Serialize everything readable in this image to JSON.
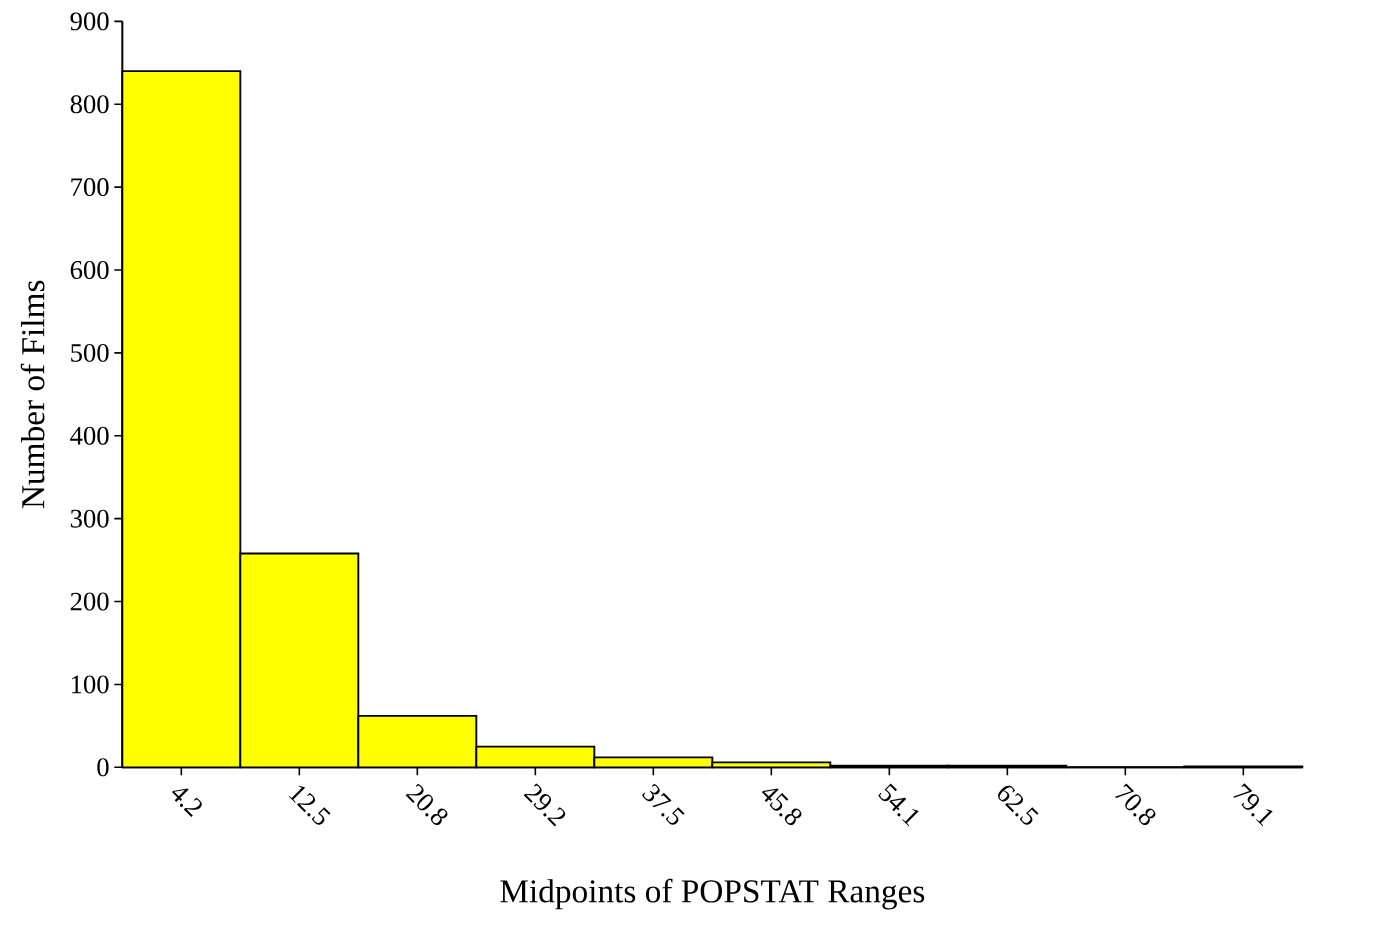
{
  "chart_data": {
    "type": "bar",
    "xlabel": "Midpoints of POPSTAT Ranges",
    "ylabel": "Number of Films",
    "categories": [
      "4.2",
      "12.5",
      "20.8",
      "29.2",
      "37.5",
      "45.8",
      "54.1",
      "62.5",
      "70.8",
      "79.1"
    ],
    "values": [
      840,
      258,
      62,
      25,
      12,
      6,
      2,
      2,
      0,
      1
    ],
    "color": "#ffff00",
    "ylim": [
      0,
      900
    ],
    "yticks": [
      0,
      100,
      200,
      300,
      400,
      500,
      600,
      700,
      800,
      900
    ],
    "grid": false
  }
}
